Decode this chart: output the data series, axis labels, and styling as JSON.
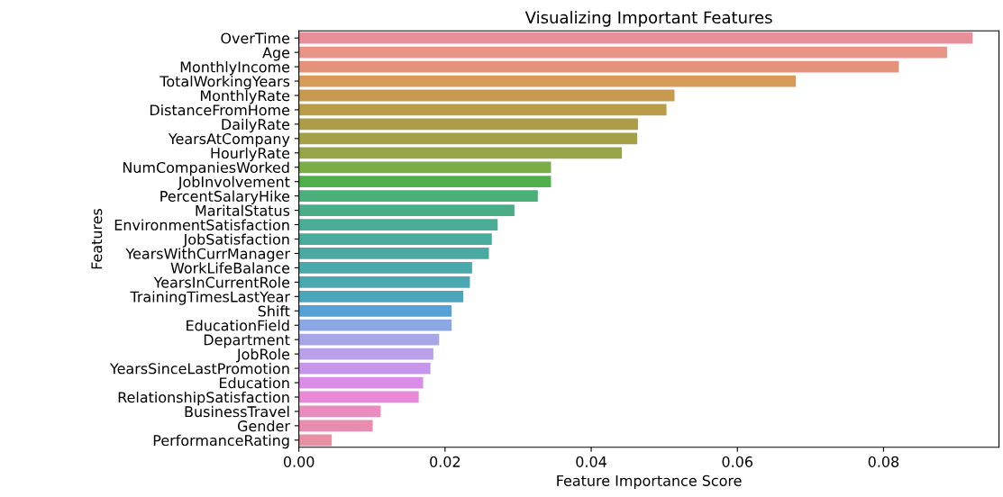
{
  "chart_data": {
    "type": "bar",
    "orientation": "horizontal",
    "title": "Visualizing Important Features",
    "xlabel": "Feature Importance Score",
    "ylabel": "Features",
    "categories": [
      "OverTime",
      "Age",
      "MonthlyIncome",
      "TotalWorkingYears",
      "MonthlyRate",
      "DistanceFromHome",
      "DailyRate",
      "YearsAtCompany",
      "HourlyRate",
      "NumCompaniesWorked",
      "JobInvolvement",
      "PercentSalaryHike",
      "MaritalStatus",
      "EnvironmentSatisfaction",
      "JobSatisfaction",
      "YearsWithCurrManager",
      "WorkLifeBalance",
      "YearsInCurrentRole",
      "TrainingTimesLastYear",
      "Shift",
      "EducationField",
      "Department",
      "JobRole",
      "YearsSinceLastPromotion",
      "Education",
      "RelationshipSatisfaction",
      "BusinessTravel",
      "Gender",
      "PerformanceRating"
    ],
    "values": [
      0.0922,
      0.0887,
      0.0821,
      0.068,
      0.0514,
      0.0503,
      0.0464,
      0.0463,
      0.0442,
      0.0345,
      0.0345,
      0.0327,
      0.0295,
      0.0272,
      0.0264,
      0.026,
      0.0237,
      0.0234,
      0.0225,
      0.0209,
      0.0209,
      0.0192,
      0.0184,
      0.018,
      0.017,
      0.0164,
      0.0112,
      0.0101,
      0.0045
    ],
    "colors": [
      "#e8909a",
      "#e89488",
      "#e4937a",
      "#d69a5a",
      "#c89a50",
      "#b89c48",
      "#ad9d48",
      "#a4a048",
      "#98a44a",
      "#7aad45",
      "#4fb04a",
      "#4cae78",
      "#4aad88",
      "#4aac94",
      "#4aab9c",
      "#4aaaa2",
      "#4aa9aa",
      "#4aa8b2",
      "#4ba6bd",
      "#56a2d6",
      "#8aa8e6",
      "#a8a6e8",
      "#b8a0ea",
      "#c796ec",
      "#da8ce8",
      "#e88ad6",
      "#e98cc0",
      "#e98cb0",
      "#e990a2"
    ],
    "xlim": [
      0,
      0.0958
    ],
    "xticks": [
      {
        "value": 0,
        "label": "0.00"
      },
      {
        "value": 0.02,
        "label": "0.02"
      },
      {
        "value": 0.04,
        "label": "0.04"
      },
      {
        "value": 0.06,
        "label": "0.06"
      },
      {
        "value": 0.08,
        "label": "0.08"
      }
    ],
    "grid": false,
    "legend": false
  }
}
